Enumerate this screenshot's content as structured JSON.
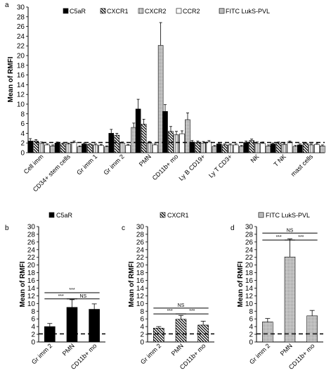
{
  "chart_data": [
    {
      "type": "bar",
      "panel": "a",
      "ylabel": "Mean of RMFI",
      "ylim": [
        0,
        30
      ],
      "yticks": [
        0,
        2,
        4,
        6,
        8,
        10,
        12,
        14,
        16,
        18,
        20,
        22,
        24,
        26,
        28,
        30
      ],
      "reference_line": 2.1,
      "legend_position": "top",
      "categories": [
        "Cell imm",
        "CD34+ stem cells",
        "Gr imm 1",
        "Gr imm 2",
        "PMN",
        "CD11b+ mo",
        "Ly B CD19+",
        "Ly T CD3+",
        "NK",
        "T NK",
        "mast cells"
      ],
      "series": [
        {
          "name": "C5aR",
          "pattern": "solid",
          "values": [
            2.4,
            2.0,
            1.8,
            4.0,
            9.0,
            8.5,
            2.2,
            1.8,
            2.1,
            1.8,
            1.6
          ],
          "errors": [
            0.5,
            0.2,
            0.2,
            0.8,
            2.0,
            1.4,
            0.3,
            0.2,
            0.3,
            0.2,
            0.2
          ]
        },
        {
          "name": "CXCR1",
          "pattern": "backslash",
          "values": [
            2.4,
            1.8,
            1.7,
            3.6,
            5.9,
            4.4,
            2.1,
            1.6,
            2.5,
            2.0,
            1.9
          ],
          "errors": [
            0.3,
            0.2,
            0.2,
            0.4,
            1.0,
            1.0,
            0.3,
            0.2,
            0.3,
            0.2,
            0.2
          ]
        },
        {
          "name": "CXCR2",
          "pattern": "vertical",
          "values": [
            1.9,
            1.8,
            1.6,
            2.0,
            2.0,
            3.7,
            2.0,
            1.6,
            1.9,
            1.7,
            1.6
          ],
          "errors": [
            0.3,
            0.2,
            0.2,
            0.2,
            0.3,
            0.7,
            0.3,
            0.2,
            0.3,
            0.2,
            0.2
          ]
        },
        {
          "name": "CCR2",
          "pattern": "open",
          "values": [
            1.6,
            2.1,
            1.5,
            1.5,
            1.6,
            3.9,
            2.2,
            1.6,
            1.9,
            2.2,
            1.7
          ],
          "errors": [
            0.2,
            0.3,
            0.2,
            0.2,
            0.2,
            0.6,
            0.3,
            0.2,
            0.3,
            0.2,
            0.2
          ]
        },
        {
          "name": "FITC LukS-PVL",
          "pattern": "dotted",
          "values": [
            1.4,
            1.2,
            1.2,
            5.2,
            22.1,
            6.8,
            1.3,
            1.3,
            1.4,
            1.3,
            1.4
          ],
          "errors": [
            0.2,
            0.2,
            0.2,
            0.9,
            4.7,
            1.4,
            0.2,
            0.2,
            0.2,
            0.2,
            0.2
          ]
        }
      ]
    },
    {
      "type": "bar",
      "panel": "b",
      "legend": "C5aR",
      "pattern": "solid",
      "ylabel": "Mean of RMFI",
      "ylim": [
        0,
        30
      ],
      "reference_line": 2.1,
      "categories": [
        "Gr imm 2",
        "PMN",
        "CD11b+ mo"
      ],
      "values": [
        4.0,
        9.0,
        8.5
      ],
      "errors": [
        0.8,
        2.0,
        1.4
      ],
      "significance": [
        {
          "from": 0,
          "to": 2,
          "label": "***",
          "y": 12.8
        },
        {
          "from": 0,
          "to": 1,
          "label": "***",
          "y": 11.2
        },
        {
          "from": 1,
          "to": 2,
          "label": "NS",
          "y": 11.2
        }
      ]
    },
    {
      "type": "bar",
      "panel": "c",
      "legend": "CXCR1",
      "pattern": "backslash",
      "ylabel": "Mean of RMFI",
      "ylim": [
        0,
        30
      ],
      "reference_line": 2.1,
      "categories": [
        "Gr imm 2",
        "PMN",
        "CD11b+ mo"
      ],
      "values": [
        3.6,
        5.9,
        4.4
      ],
      "errors": [
        0.4,
        1.0,
        1.0
      ],
      "significance": [
        {
          "from": 0,
          "to": 2,
          "label": "NS",
          "y": 8.8
        },
        {
          "from": 0,
          "to": 1,
          "label": "***",
          "y": 7.3
        },
        {
          "from": 1,
          "to": 2,
          "label": "***",
          "y": 7.3
        }
      ]
    },
    {
      "type": "bar",
      "panel": "d",
      "legend": "FITC LukS-PVL",
      "pattern": "dotted",
      "ylabel": "Mean of RMFI",
      "ylim": [
        0,
        30
      ],
      "reference_line": 2.1,
      "categories": [
        "Gr imm 2",
        "PMN",
        "CD11b+ mo"
      ],
      "values": [
        5.2,
        22.1,
        6.8
      ],
      "errors": [
        0.9,
        4.7,
        1.4
      ],
      "significance": [
        {
          "from": 0,
          "to": 2,
          "label": "NS",
          "y": 28.3
        },
        {
          "from": 0,
          "to": 1,
          "label": "***",
          "y": 26.5
        },
        {
          "from": 1,
          "to": 2,
          "label": "***",
          "y": 26.5
        }
      ]
    }
  ]
}
